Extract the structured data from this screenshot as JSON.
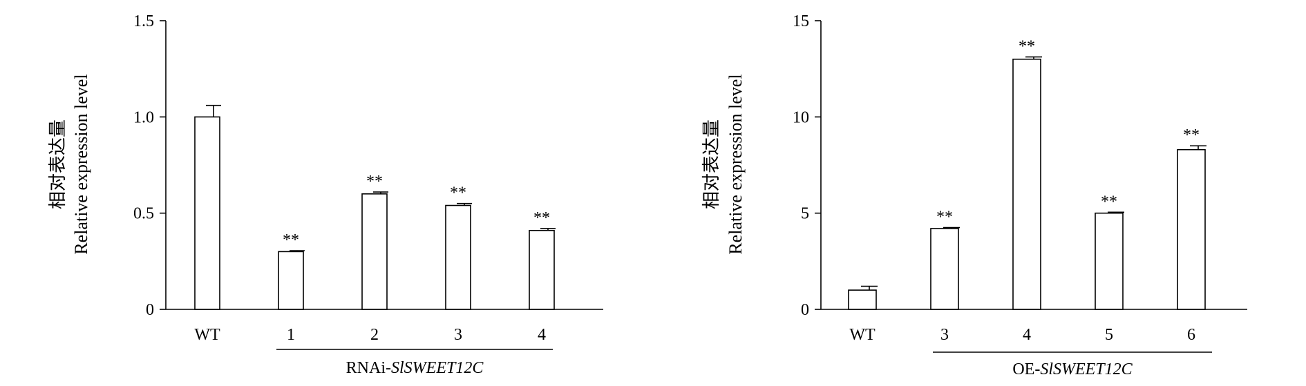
{
  "chart_data": [
    {
      "type": "bar",
      "categories": [
        "WT",
        "1",
        "2",
        "3",
        "4"
      ],
      "values": [
        1.0,
        0.3,
        0.6,
        0.54,
        0.41
      ],
      "errors": [
        0.06,
        0.005,
        0.01,
        0.01,
        0.01
      ],
      "significance": [
        "",
        "**",
        "**",
        "**",
        "**"
      ],
      "ylim": [
        0,
        1.5
      ],
      "yticks": [
        "0",
        "0.5",
        "1.0",
        "1.5"
      ],
      "ylabel_cn": "相对表达量",
      "ylabel": "Relative expression level",
      "group_label_prefix": "RNAi-",
      "group_label_gene": "SlSWEET12C"
    },
    {
      "type": "bar",
      "categories": [
        "WT",
        "3",
        "4",
        "5",
        "6"
      ],
      "values": [
        1.0,
        4.2,
        13.0,
        5.0,
        8.3
      ],
      "errors": [
        0.2,
        0.05,
        0.12,
        0.05,
        0.2
      ],
      "significance": [
        "",
        "**",
        "**",
        "**",
        "**"
      ],
      "ylim": [
        0,
        15
      ],
      "yticks": [
        "0",
        "5",
        "10",
        "15"
      ],
      "ylabel_cn": "相对表达量",
      "ylabel": "Relative expression level",
      "group_label_prefix": "OE-",
      "group_label_gene": "SlSWEET12C"
    }
  ]
}
